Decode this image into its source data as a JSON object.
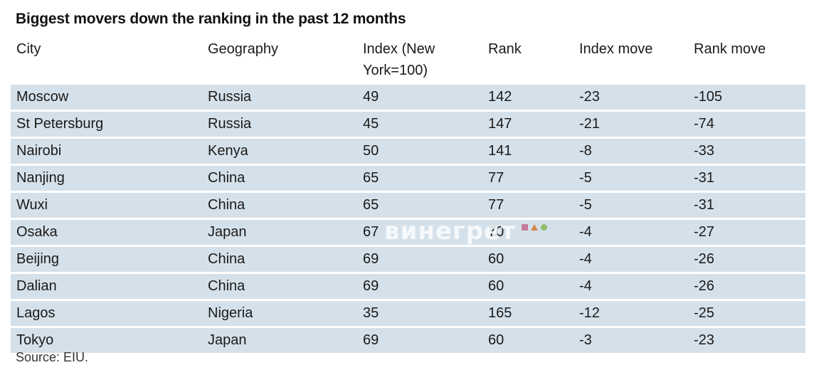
{
  "title": "Biggest movers down the ranking in the past 12 months",
  "columns": [
    "City",
    "Geography",
    "Index (New York=100)",
    "Rank",
    "Index move",
    "Rank move"
  ],
  "rows": [
    [
      "Moscow",
      "Russia",
      "49",
      "142",
      "-23",
      "-105"
    ],
    [
      "St Petersburg",
      "Russia",
      "45",
      "147",
      "-21",
      "-74"
    ],
    [
      "Nairobi",
      "Kenya",
      "50",
      "141",
      "-8",
      "-33"
    ],
    [
      "Nanjing",
      "China",
      "65",
      "77",
      "-5",
      "-31"
    ],
    [
      "Wuxi",
      "China",
      "65",
      "77",
      "-5",
      "-31"
    ],
    [
      "Osaka",
      "Japan",
      "67",
      "70",
      "-4",
      "-27"
    ],
    [
      "Beijing",
      "China",
      "69",
      "60",
      "-4",
      "-26"
    ],
    [
      "Dalian",
      "China",
      "69",
      "60",
      "-4",
      "-26"
    ],
    [
      "Lagos",
      "Nigeria",
      "35",
      "165",
      "-12",
      "-25"
    ],
    [
      "Tokyo",
      "Japan",
      "69",
      "60",
      "-3",
      "-23"
    ]
  ],
  "source": "Source: EIU.",
  "watermark": {
    "text": "винегрет",
    "colors": {
      "square": "#c77b9a",
      "triangle": "#d4884a",
      "circle": "#8fbf6a"
    }
  },
  "colors": {
    "row_background": "#d5e1ea",
    "text": "#1a1a1a"
  }
}
